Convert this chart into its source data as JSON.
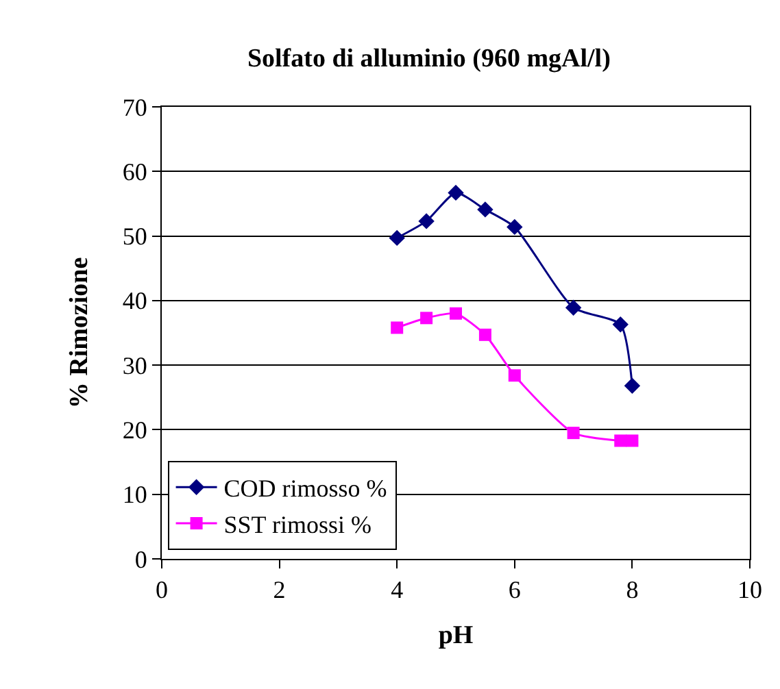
{
  "chart_data": {
    "type": "line",
    "title": "Solfato di alluminio (960 mgAl/l)",
    "xlabel": "pH",
    "ylabel": "% Rimozione",
    "xlim": [
      0,
      10
    ],
    "xticks": [
      0,
      2,
      4,
      6,
      8,
      10
    ],
    "ylim": [
      0,
      70
    ],
    "yticks": [
      0,
      10,
      20,
      30,
      40,
      50,
      60,
      70
    ],
    "grid": "y",
    "legend": "bottom left",
    "series": [
      {
        "name": "COD rimosso %",
        "color": "#000080",
        "marker": "diamond",
        "x": [
          4,
          4.5,
          5,
          5.5,
          6,
          7,
          7.8,
          8
        ],
        "values": [
          49.7,
          52.3,
          56.7,
          54.1,
          51.4,
          38.9,
          36.3,
          26.8
        ]
      },
      {
        "name": "SST rimossi %",
        "color": "#ff00ff",
        "marker": "square",
        "x": [
          4,
          4.5,
          5,
          5.5,
          6,
          7,
          7.8,
          8
        ],
        "values": [
          35.8,
          37.3,
          38.0,
          34.7,
          28.4,
          19.5,
          18.3,
          18.3
        ]
      }
    ]
  }
}
